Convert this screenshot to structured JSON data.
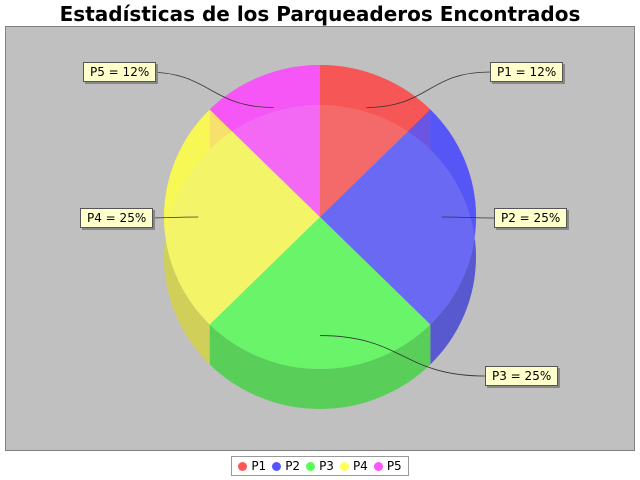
{
  "chart_data": {
    "type": "pie",
    "title": "Estadísticas de los Parqueaderos Encontrados",
    "categories": [
      "P1",
      "P2",
      "P3",
      "P4",
      "P5"
    ],
    "values": [
      12.5,
      25,
      25,
      25,
      12.5
    ],
    "labels": [
      "P1 = 12%",
      "P2 = 25%",
      "P3 = 25%",
      "P4 = 25%",
      "P5 = 12%"
    ],
    "colors": [
      "#ff5555",
      "#5555ff",
      "#55ff55",
      "#ffff55",
      "#ff55ff"
    ],
    "legend_position": "bottom",
    "style": "3d"
  }
}
